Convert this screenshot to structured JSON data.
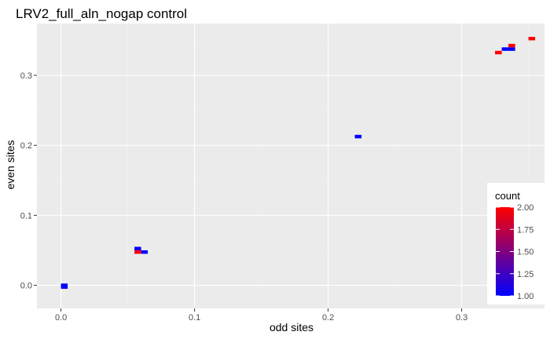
{
  "chart_data": {
    "type": "heatmap",
    "title": "LRV2_full_aln_nogap control",
    "xlabel": "odd sites",
    "ylabel": "even sites",
    "xlim": [
      -0.018,
      0.362
    ],
    "ylim": [
      -0.033,
      0.374
    ],
    "x_ticks": [
      0.0,
      0.1,
      0.2,
      0.3
    ],
    "x_tick_labels": [
      "0.0",
      "0.1",
      "0.2",
      "0.3"
    ],
    "y_ticks": [
      0.0,
      0.1,
      0.2,
      0.3
    ],
    "y_tick_labels": [
      "0.0",
      "0.1",
      "0.2",
      "0.3"
    ],
    "grid": true,
    "legend": {
      "title": "count",
      "position": "bottom-right inside",
      "range": [
        1.0,
        2.0
      ],
      "ticks": [
        1.0,
        1.25,
        1.5,
        1.75,
        2.0
      ],
      "tick_labels": [
        "1.00",
        "1.25",
        "1.50",
        "1.75",
        "2.00"
      ],
      "low_color": "#0000ff",
      "high_color": "#ff0000"
    },
    "bin_size": {
      "x": 0.005,
      "y": 0.005
    },
    "cells": [
      {
        "x": 0.0025,
        "y": 0.0,
        "count": 1
      },
      {
        "x": 0.0025,
        "y": -0.0025,
        "count": 1
      },
      {
        "x": 0.0575,
        "y": 0.0525,
        "count": 1
      },
      {
        "x": 0.0575,
        "y": 0.0475,
        "count": 2
      },
      {
        "x": 0.0625,
        "y": 0.0475,
        "count": 1
      },
      {
        "x": 0.2225,
        "y": 0.2125,
        "count": 1
      },
      {
        "x": 0.3275,
        "y": 0.3325,
        "count": 2
      },
      {
        "x": 0.3325,
        "y": 0.3375,
        "count": 1
      },
      {
        "x": 0.3375,
        "y": 0.3375,
        "count": 1
      },
      {
        "x": 0.3375,
        "y": 0.3425,
        "count": 2
      },
      {
        "x": 0.3525,
        "y": 0.3525,
        "count": 2
      }
    ]
  },
  "colors": {
    "panel_background": "#ebebeb",
    "grid_major": "#ffffff",
    "grid_minor": "#f2f2f2",
    "tick": "#333333"
  }
}
